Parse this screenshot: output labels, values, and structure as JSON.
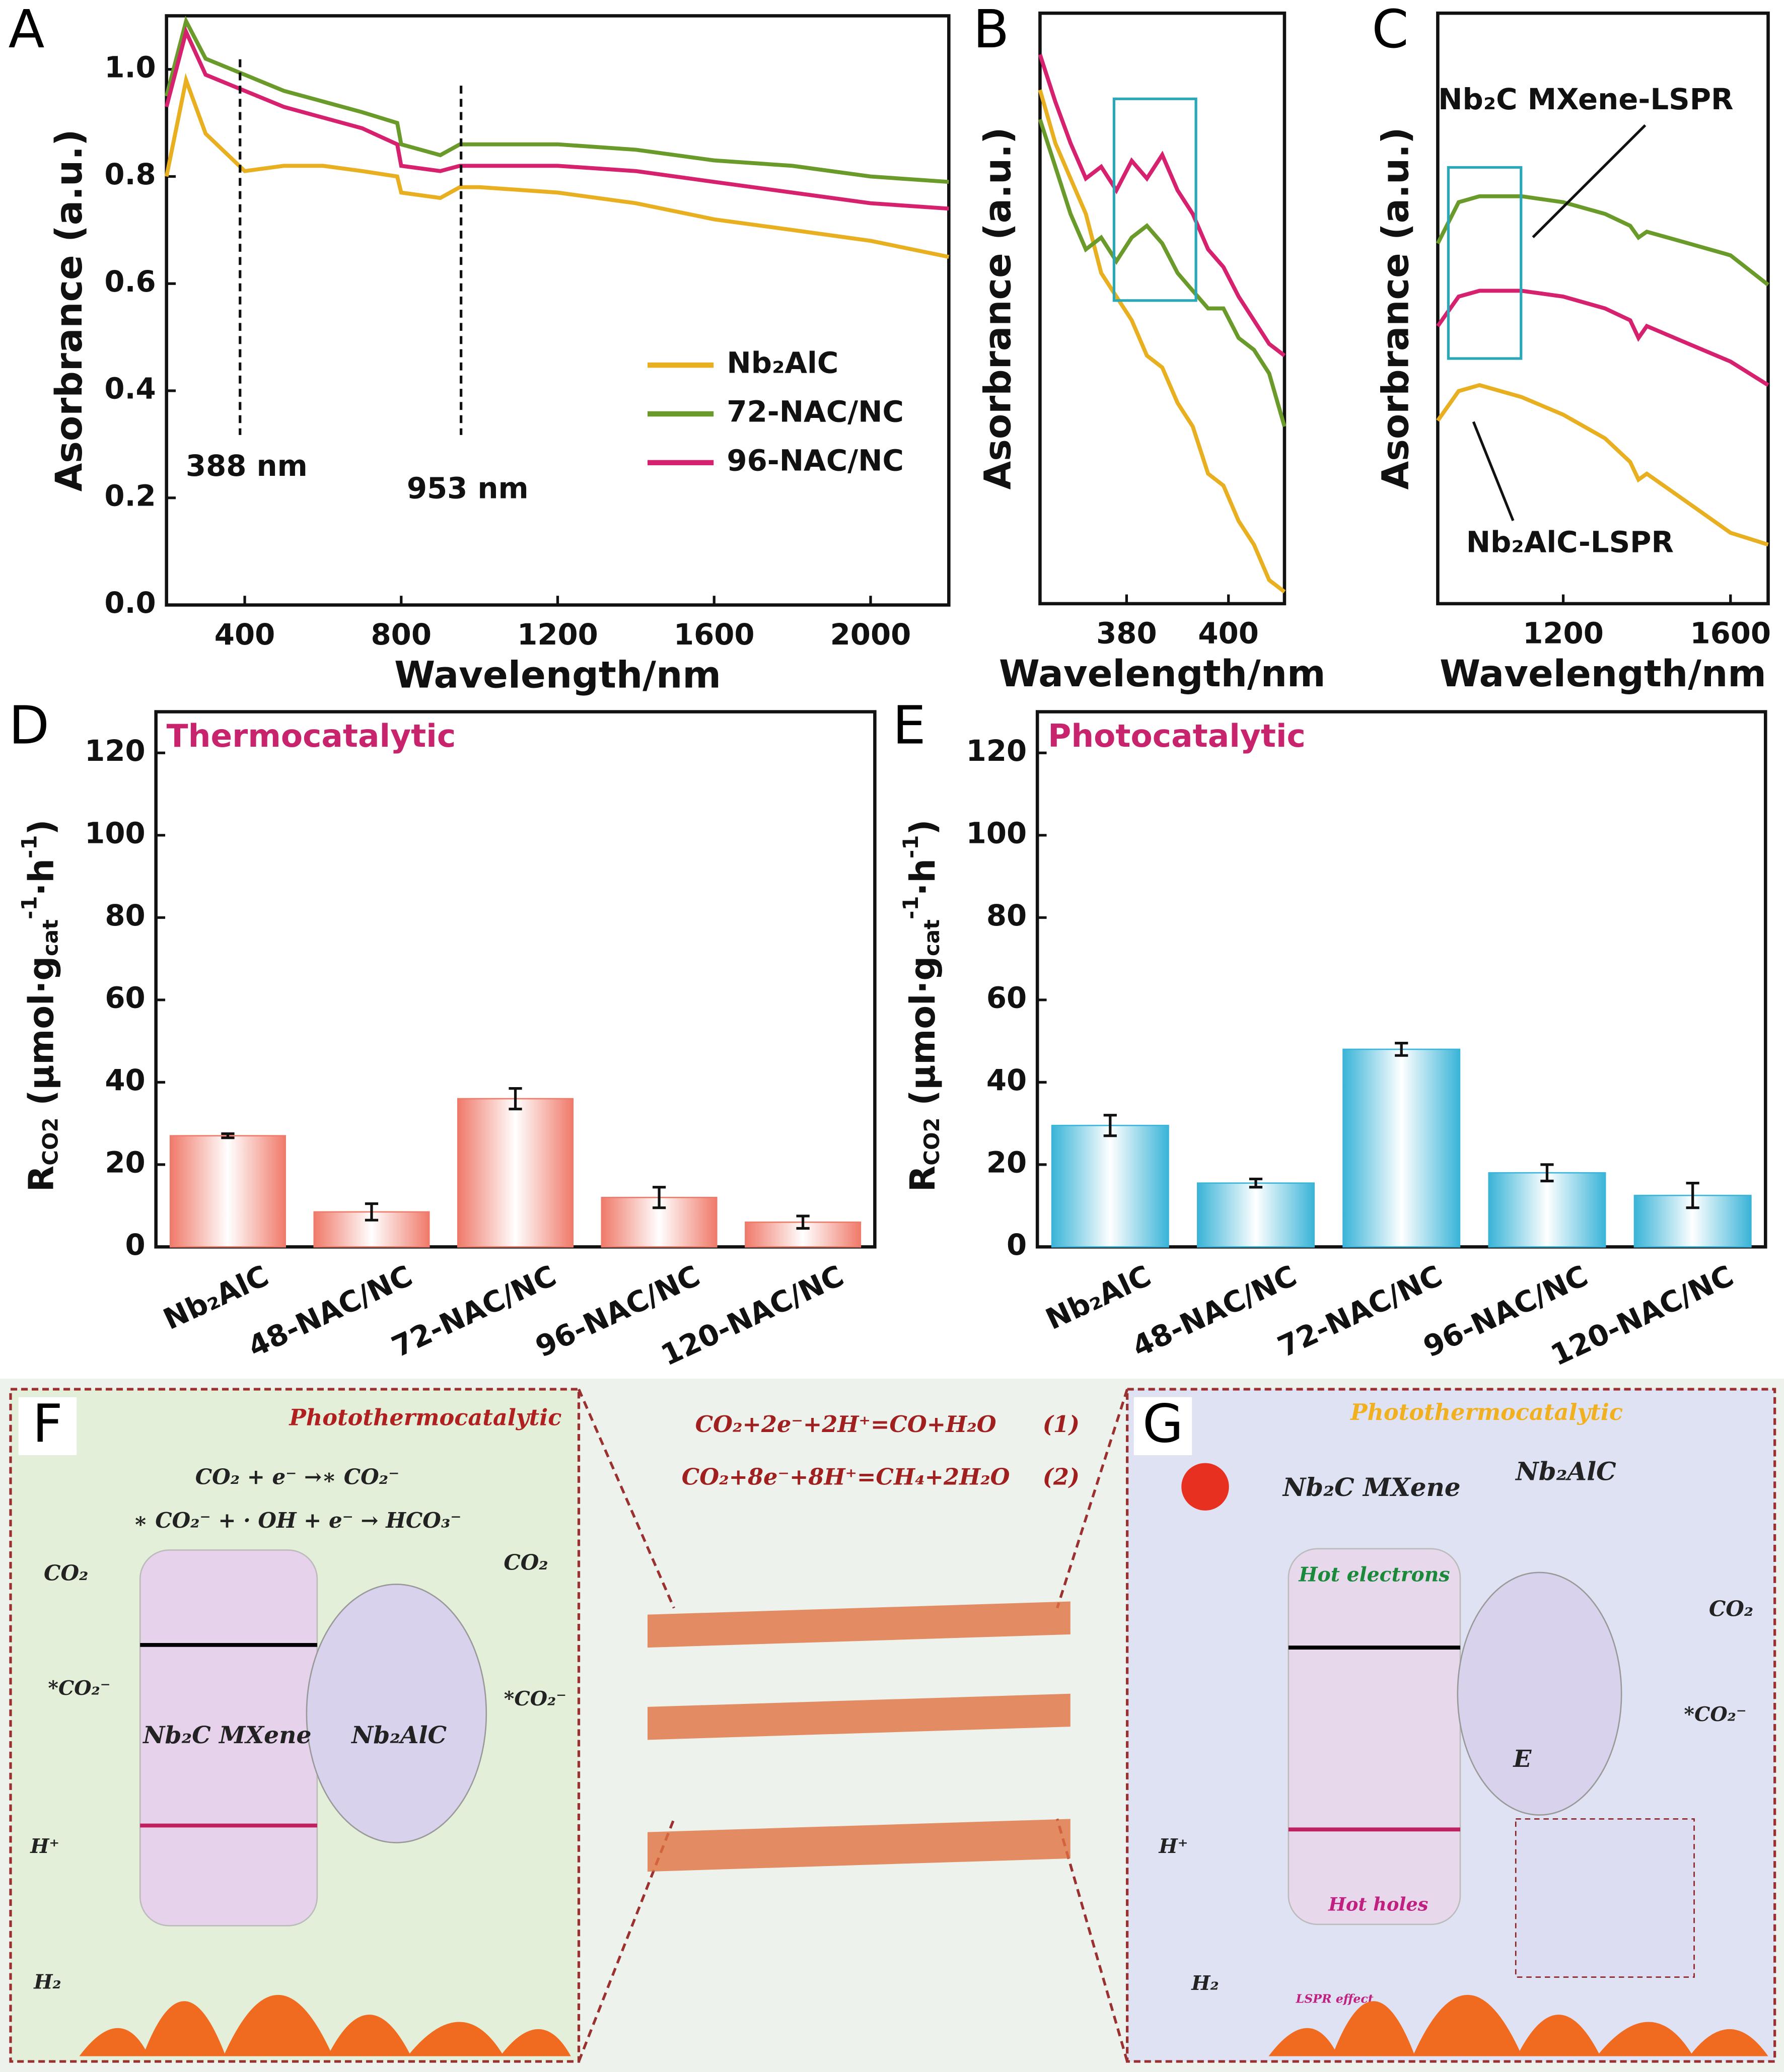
{
  "chart_data": [
    {
      "type": "line",
      "panel": "A",
      "xlabel": "Wavelength/nm",
      "ylabel": "Asorbrance (a.u.)",
      "xlim": [
        200,
        2200
      ],
      "ylim": [
        0,
        1.1
      ],
      "xticks": [
        400,
        800,
        1200,
        1600,
        2000
      ],
      "yticks": [
        {
          "value": 0,
          "label": "0.0"
        },
        0.2,
        0.4,
        0.6,
        0.8,
        {
          "value": 1,
          "label": "1.0"
        }
      ],
      "x": [
        200,
        250,
        300,
        400,
        500,
        600,
        700,
        790,
        800,
        900,
        950,
        1000,
        1200,
        1400,
        1600,
        1800,
        2000,
        2200
      ],
      "series": [
        {
          "name": "Nb₂AlC",
          "color": "#e8b020",
          "values": [
            0.8,
            0.98,
            0.88,
            0.81,
            0.82,
            0.82,
            0.81,
            0.8,
            0.77,
            0.76,
            0.78,
            0.78,
            0.77,
            0.75,
            0.72,
            0.7,
            0.68,
            0.65
          ]
        },
        {
          "name": "72-NAC/NC",
          "color": "#6a9a2a",
          "values": [
            0.95,
            1.09,
            1.02,
            0.99,
            0.96,
            0.94,
            0.92,
            0.9,
            0.86,
            0.84,
            0.86,
            0.86,
            0.86,
            0.85,
            0.83,
            0.82,
            0.8,
            0.79
          ]
        },
        {
          "name": "96-NAC/NC",
          "color": "#d6226e",
          "values": [
            0.93,
            1.07,
            0.99,
            0.96,
            0.93,
            0.91,
            0.89,
            0.86,
            0.82,
            0.81,
            0.82,
            0.82,
            0.82,
            0.81,
            0.79,
            0.77,
            0.75,
            0.74
          ]
        }
      ],
      "annotations": [
        {
          "x": 388,
          "label": "388 nm"
        },
        {
          "x": 953,
          "label": "953 nm"
        }
      ],
      "legend": "lower right"
    },
    {
      "type": "line",
      "panel": "B",
      "xlabel": "Wavelength/nm",
      "ylabel": "Asorbrance (a.u.)",
      "xlim": [
        363,
        411
      ],
      "ylim": [
        0,
        1
      ],
      "xticks": [
        380,
        400
      ],
      "x": [
        363,
        366,
        369,
        372,
        375,
        378,
        381,
        384,
        387,
        390,
        393,
        396,
        399,
        402,
        405,
        408,
        411
      ],
      "series": [
        {
          "color": "#e8b020",
          "values": [
            0.87,
            0.78,
            0.72,
            0.66,
            0.56,
            0.52,
            0.48,
            0.42,
            0.4,
            0.34,
            0.3,
            0.22,
            0.2,
            0.14,
            0.1,
            0.04,
            0.02
          ]
        },
        {
          "color": "#6a9a2a",
          "values": [
            0.82,
            0.74,
            0.66,
            0.6,
            0.62,
            0.58,
            0.62,
            0.64,
            0.61,
            0.56,
            0.53,
            0.5,
            0.5,
            0.45,
            0.43,
            0.39,
            0.3
          ]
        },
        {
          "color": "#d6226e",
          "values": [
            0.93,
            0.85,
            0.78,
            0.72,
            0.74,
            0.7,
            0.75,
            0.72,
            0.76,
            0.7,
            0.66,
            0.6,
            0.57,
            0.52,
            0.48,
            0.44,
            0.42
          ]
        }
      ]
    },
    {
      "type": "line",
      "panel": "C",
      "xlabel": "Wavelength/nm",
      "ylabel": "Asorbrance (a.u.)",
      "xlim": [
        900,
        1690
      ],
      "ylim": [
        0,
        1
      ],
      "xticks": [
        1200,
        1600
      ],
      "x": [
        900,
        950,
        1000,
        1100,
        1200,
        1300,
        1360,
        1380,
        1400,
        1500,
        1600,
        1690
      ],
      "series": [
        {
          "color": "#e8b020",
          "values": [
            0.31,
            0.36,
            0.37,
            0.35,
            0.32,
            0.28,
            0.24,
            0.21,
            0.22,
            0.17,
            0.12,
            0.1
          ]
        },
        {
          "color": "#6a9a2a",
          "values": [
            0.61,
            0.68,
            0.69,
            0.69,
            0.68,
            0.66,
            0.64,
            0.62,
            0.63,
            0.61,
            0.59,
            0.54
          ]
        },
        {
          "color": "#d6226e",
          "values": [
            0.47,
            0.52,
            0.53,
            0.53,
            0.52,
            0.5,
            0.48,
            0.45,
            0.47,
            0.44,
            0.41,
            0.37
          ]
        }
      ],
      "annotations": [
        {
          "label": "Nb₂C MXene-LSPR"
        },
        {
          "label": "Nb₂AlC-LSPR"
        }
      ]
    },
    {
      "type": "bar",
      "panel": "D",
      "title": "Thermocatalytic",
      "title_color": "#c8246e",
      "ylabel": {
        "main": "R",
        "sub": "CO2",
        "unit": " (μmol·g",
        "unit_sub": "cat",
        "exp1": "-1",
        "mid": "·h",
        "exp2": "-1",
        "close": ")"
      },
      "ylim": [
        0,
        130
      ],
      "yticks": [
        0,
        20,
        40,
        60,
        80,
        100,
        120
      ],
      "categories": [
        "Nb₂AlC",
        "48-NAC/NC",
        "72-NAC/NC",
        "96-NAC/NC",
        "120-NAC/NC"
      ],
      "values": [
        27,
        8.5,
        36,
        12,
        6
      ],
      "errors": [
        0.5,
        2,
        2.5,
        2.5,
        1.5
      ],
      "color": "#f07a6a"
    },
    {
      "type": "bar",
      "panel": "E",
      "title": "Photocatalytic",
      "title_color": "#c8246e",
      "ylabel": {
        "main": "R",
        "sub": "CO2",
        "unit": " (μmol·g",
        "unit_sub": "cat",
        "exp1": "-1",
        "mid": "·h",
        "exp2": "-1",
        "close": ")"
      },
      "ylim": [
        0,
        130
      ],
      "yticks": [
        0,
        20,
        40,
        60,
        80,
        100,
        120
      ],
      "categories": [
        "Nb₂AlC",
        "48-NAC/NC",
        "72-NAC/NC",
        "96-NAC/NC",
        "120-NAC/NC"
      ],
      "values": [
        29.5,
        15.5,
        48,
        18,
        12.5
      ],
      "errors": [
        2.5,
        1,
        1.5,
        2,
        3
      ],
      "color": "#3ab4d8"
    }
  ],
  "diagram": {
    "F": {
      "panel": "F",
      "title": "Photothermocatalytic",
      "eq1": "CO₂ + e⁻ →∗ CO₂⁻",
      "eq2": "∗ CO₂⁻ + · OH + e⁻ → HCO₃⁻",
      "co2_left": "CO₂",
      "co2_right": "CO₂",
      "prod_left": "*CO₂⁻",
      "prod_right": "*CO₂⁻",
      "mxene": "Nb₂C MXene",
      "max": "Nb₂AlC",
      "hplus": "H⁺",
      "h2": "H₂"
    },
    "center": {
      "r1": "CO₂+2e⁻+2H⁺=CO+H₂O",
      "n1": "(1)",
      "r2": "CO₂+8e⁻+8H⁺=CH₄+2H₂O",
      "n2": "(2)"
    },
    "G": {
      "panel": "G",
      "title": "Photothermocatalytic",
      "mxene": "Nb₂C MXene",
      "max": "Nb₂AlC",
      "hot_e": "Hot electrons",
      "hot_h": "Hot holes",
      "field": "E",
      "co2": "CO₂",
      "prod": "*CO₂⁻",
      "hplus": "H⁺",
      "h2": "H₂",
      "lspr": "LSPR effect"
    }
  }
}
